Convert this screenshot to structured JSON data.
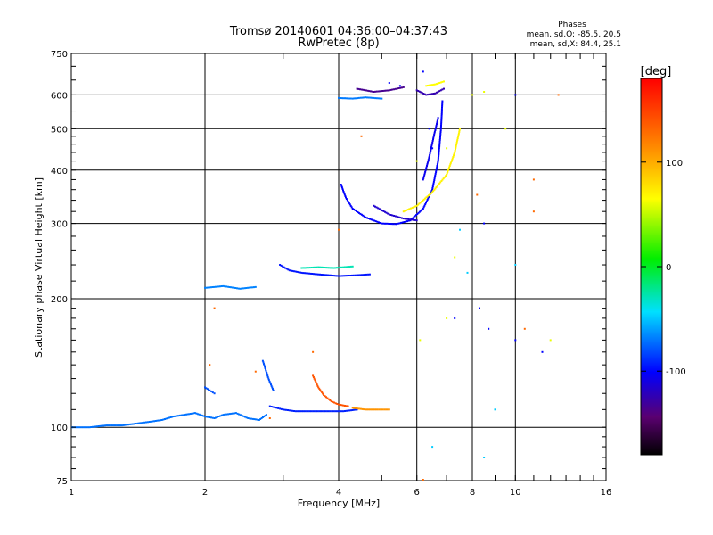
{
  "chart_data": {
    "type": "scatter",
    "title": "Tromsø 20140601 04:36:00–04:37:43",
    "subtitle": "RwPretec (8p)",
    "xlabel": "Frequency [MHz]",
    "ylabel": "Stationary phase Virtual Height [km]",
    "x_scale": "log",
    "y_scale": "log",
    "xlim": [
      1,
      16
    ],
    "ylim": [
      75,
      750
    ],
    "x_ticks": [
      1,
      2,
      4,
      6,
      8,
      10,
      16
    ],
    "x_tick_labels": [
      "1",
      "2",
      "4",
      "6",
      "8",
      "10",
      "16"
    ],
    "y_ticks": [
      75,
      100,
      200,
      300,
      400,
      500,
      600,
      750
    ],
    "y_tick_labels": [
      "75",
      "100",
      "200",
      "300",
      "400",
      "500",
      "600",
      "750"
    ],
    "grid": true,
    "annotation": {
      "heading": "Phases",
      "line1": "mean, sd,O: -85.5, 20.5",
      "line2": "mean, sd,X:  84.4, 25.1"
    },
    "colorbar": {
      "label": "[deg]",
      "range": [
        -180,
        180
      ],
      "ticks": [
        100,
        0,
        -100
      ],
      "tick_labels": [
        "100",
        "0",
        "-100"
      ],
      "colormap": "rainbow"
    },
    "traces": [
      {
        "kind": "curve",
        "phase": -72,
        "points": [
          [
            1.0,
            100
          ],
          [
            1.1,
            100
          ],
          [
            1.2,
            101
          ],
          [
            1.3,
            101
          ],
          [
            1.4,
            102
          ],
          [
            1.5,
            103
          ],
          [
            1.6,
            104
          ],
          [
            1.7,
            106
          ],
          [
            1.8,
            107
          ],
          [
            1.9,
            108
          ],
          [
            2.0,
            106
          ],
          [
            2.1,
            105
          ],
          [
            2.2,
            107
          ],
          [
            2.35,
            108
          ],
          [
            2.5,
            105
          ],
          [
            2.65,
            104
          ],
          [
            2.75,
            107
          ]
        ]
      },
      {
        "kind": "curve",
        "phase": -92,
        "points": [
          [
            2.8,
            112
          ],
          [
            2.9,
            111
          ],
          [
            3.0,
            110
          ],
          [
            3.2,
            109
          ],
          [
            3.5,
            109
          ],
          [
            3.8,
            109
          ],
          [
            4.1,
            109
          ],
          [
            4.4,
            110
          ]
        ]
      },
      {
        "kind": "curve",
        "phase": 140,
        "points": [
          [
            3.5,
            132
          ],
          [
            3.6,
            124
          ],
          [
            3.7,
            119
          ],
          [
            3.85,
            115
          ],
          [
            4.0,
            113
          ],
          [
            4.2,
            112
          ]
        ]
      },
      {
        "kind": "curve",
        "phase": 110,
        "points": [
          [
            4.3,
            111
          ],
          [
            4.6,
            110
          ],
          [
            4.9,
            110
          ],
          [
            5.2,
            110
          ]
        ]
      },
      {
        "kind": "curve",
        "phase": -80,
        "points": [
          [
            2.0,
            124
          ],
          [
            2.05,
            122
          ],
          [
            2.1,
            120
          ]
        ]
      },
      {
        "kind": "curve",
        "phase": -80,
        "points": [
          [
            2.7,
            143
          ],
          [
            2.78,
            130
          ],
          [
            2.85,
            122
          ]
        ]
      },
      {
        "kind": "curve",
        "phase": -68,
        "points": [
          [
            2.0,
            212
          ],
          [
            2.2,
            214
          ],
          [
            2.4,
            211
          ],
          [
            2.6,
            213
          ]
        ]
      },
      {
        "kind": "curve",
        "phase": -95,
        "points": [
          [
            2.95,
            240
          ],
          [
            3.1,
            233
          ],
          [
            3.3,
            230
          ],
          [
            3.6,
            228
          ],
          [
            4.0,
            226
          ],
          [
            4.4,
            227
          ],
          [
            4.7,
            228
          ]
        ]
      },
      {
        "kind": "curve",
        "phase": -30,
        "points": [
          [
            3.3,
            236
          ],
          [
            3.6,
            237
          ],
          [
            3.9,
            236
          ],
          [
            4.3,
            238
          ]
        ]
      },
      {
        "kind": "curve",
        "phase": -100,
        "points": [
          [
            4.05,
            370
          ],
          [
            4.15,
            345
          ],
          [
            4.3,
            325
          ],
          [
            4.6,
            310
          ],
          [
            5.0,
            300
          ],
          [
            5.4,
            299
          ],
          [
            5.8,
            305
          ],
          [
            6.2,
            325
          ],
          [
            6.5,
            360
          ],
          [
            6.7,
            420
          ],
          [
            6.8,
            500
          ],
          [
            6.85,
            580
          ]
        ]
      },
      {
        "kind": "curve",
        "phase": -115,
        "points": [
          [
            4.8,
            330
          ],
          [
            5.2,
            315
          ],
          [
            5.6,
            308
          ],
          [
            6.0,
            305
          ]
        ]
      },
      {
        "kind": "curve",
        "phase": -105,
        "points": [
          [
            6.2,
            380
          ],
          [
            6.4,
            430
          ],
          [
            6.55,
            480
          ],
          [
            6.7,
            530
          ]
        ]
      },
      {
        "kind": "curve",
        "phase": 70,
        "points": [
          [
            5.6,
            320
          ],
          [
            6.0,
            330
          ],
          [
            6.5,
            355
          ],
          [
            7.0,
            390
          ],
          [
            7.3,
            440
          ],
          [
            7.5,
            500
          ]
        ]
      },
      {
        "kind": "curve",
        "phase": -135,
        "points": [
          [
            4.4,
            620
          ],
          [
            4.8,
            610
          ],
          [
            5.2,
            615
          ],
          [
            5.6,
            625
          ]
        ]
      },
      {
        "kind": "curve",
        "phase": -70,
        "points": [
          [
            4.0,
            590
          ],
          [
            4.3,
            588
          ],
          [
            4.6,
            592
          ],
          [
            5.0,
            588
          ]
        ]
      },
      {
        "kind": "curve",
        "phase": -125,
        "points": [
          [
            6.0,
            615
          ],
          [
            6.3,
            600
          ],
          [
            6.6,
            605
          ],
          [
            6.9,
            620
          ]
        ]
      },
      {
        "kind": "curve",
        "phase": 65,
        "points": [
          [
            6.3,
            630
          ],
          [
            6.6,
            635
          ],
          [
            6.9,
            645
          ]
        ]
      },
      {
        "kind": "scatter",
        "phase": -100,
        "points": [
          [
            5.2,
            640
          ],
          [
            5.5,
            630
          ],
          [
            6.4,
            500
          ],
          [
            6.5,
            450
          ],
          [
            7.3,
            180
          ],
          [
            8.3,
            190
          ],
          [
            8.7,
            170
          ],
          [
            10.0,
            160
          ],
          [
            11.5,
            150
          ],
          [
            6.2,
            680
          ],
          [
            8.5,
            300
          ],
          [
            10.0,
            600
          ]
        ]
      },
      {
        "kind": "scatter",
        "phase": -50,
        "points": [
          [
            6.5,
            90
          ],
          [
            8.5,
            85
          ],
          [
            10.0,
            240
          ],
          [
            7.5,
            290
          ],
          [
            9.0,
            110
          ],
          [
            7.8,
            230
          ]
        ]
      },
      {
        "kind": "scatter",
        "phase": 60,
        "points": [
          [
            8.0,
            600
          ],
          [
            8.5,
            610
          ],
          [
            7.0,
            450
          ],
          [
            9.5,
            500
          ],
          [
            6.0,
            420
          ],
          [
            7.3,
            250
          ],
          [
            12.0,
            160
          ],
          [
            6.1,
            160
          ],
          [
            7.0,
            180
          ]
        ]
      },
      {
        "kind": "scatter",
        "phase": 130,
        "points": [
          [
            2.05,
            140
          ],
          [
            2.1,
            190
          ],
          [
            3.5,
            150
          ],
          [
            4.5,
            480
          ],
          [
            11.0,
            380
          ],
          [
            6.2,
            75
          ],
          [
            4.0,
            290
          ],
          [
            8.2,
            350
          ],
          [
            2.6,
            135
          ],
          [
            11.0,
            320
          ],
          [
            12.5,
            600
          ],
          [
            10.5,
            170
          ],
          [
            2.8,
            105
          ]
        ]
      }
    ]
  }
}
